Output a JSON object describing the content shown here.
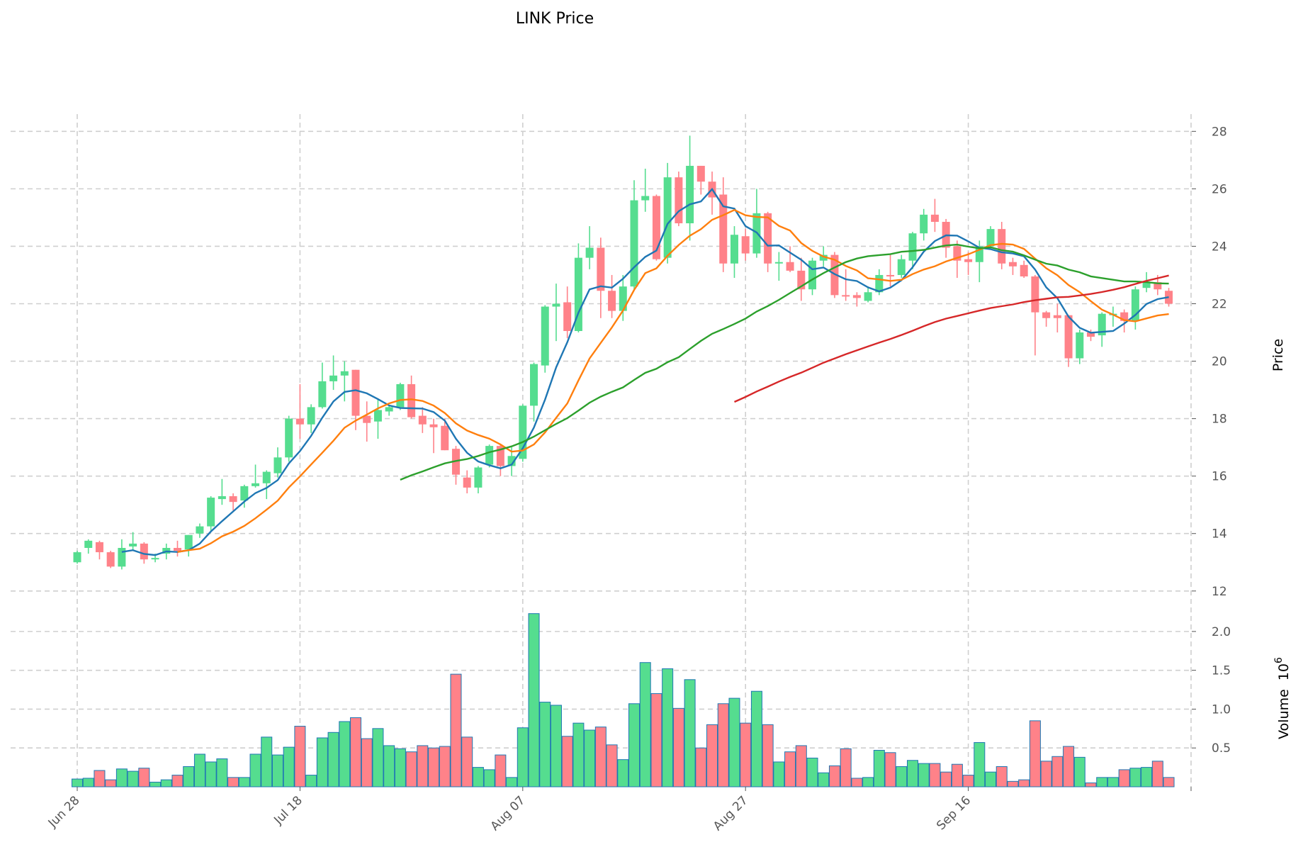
{
  "chart_data": {
    "type": "candlestick",
    "title": "LINK Price",
    "price_axis": {
      "label": "Price",
      "ylim": [
        11.6,
        28.6
      ],
      "ticks": [
        12,
        14,
        16,
        18,
        20,
        22,
        24,
        26,
        28
      ]
    },
    "volume_axis": {
      "label": "Volume",
      "multiplier_label": "10",
      "multiplier_exp": "6",
      "ylim": [
        0,
        2.3
      ],
      "ticks": [
        0.5,
        1.0,
        1.5,
        2.0
      ],
      "tick_labels": [
        "0.5",
        "1.0",
        "1.5",
        "2.0"
      ]
    },
    "x_ticks": [
      {
        "index": 0,
        "label": "Jun 28"
      },
      {
        "index": 20,
        "label": "Jul 18"
      },
      {
        "index": 40,
        "label": "Aug 07"
      },
      {
        "index": 60,
        "label": "Aug 27"
      },
      {
        "index": 80,
        "label": "Sep 16"
      },
      {
        "index": 100,
        "label": ""
      }
    ],
    "grid": true,
    "colors": {
      "up": "#55dd8f",
      "down": "#ff8289",
      "volume_edge": "#1f77b4",
      "ma": [
        "#1f77b4",
        "#ff7f0e",
        "#2ca02c",
        "#d62728"
      ]
    },
    "moving_average_periods": [
      5,
      10,
      30,
      60
    ],
    "ohlc_fields": [
      "open",
      "high",
      "low",
      "close"
    ],
    "ohlc": [
      [
        13.0,
        13.4,
        12.95,
        13.35
      ],
      [
        13.5,
        13.8,
        13.3,
        13.75
      ],
      [
        13.7,
        13.75,
        13.1,
        13.35
      ],
      [
        13.35,
        13.4,
        12.8,
        12.85
      ],
      [
        12.85,
        13.8,
        12.75,
        13.5
      ],
      [
        13.55,
        14.05,
        13.4,
        13.65
      ],
      [
        13.65,
        13.7,
        12.95,
        13.1
      ],
      [
        13.1,
        13.3,
        13.0,
        13.15
      ],
      [
        13.3,
        13.65,
        13.1,
        13.5
      ],
      [
        13.5,
        13.75,
        13.2,
        13.4
      ],
      [
        13.45,
        13.95,
        13.2,
        13.95
      ],
      [
        14.0,
        14.35,
        13.85,
        14.25
      ],
      [
        14.25,
        15.3,
        14.1,
        15.25
      ],
      [
        15.2,
        15.9,
        15.0,
        15.3
      ],
      [
        15.3,
        15.4,
        14.8,
        15.1
      ],
      [
        15.15,
        15.7,
        14.9,
        15.65
      ],
      [
        15.65,
        16.4,
        15.6,
        15.75
      ],
      [
        15.75,
        16.2,
        15.2,
        16.15
      ],
      [
        16.1,
        17.0,
        15.95,
        16.65
      ],
      [
        16.65,
        18.1,
        16.5,
        18.0
      ],
      [
        18.0,
        19.2,
        17.3,
        17.8
      ],
      [
        17.8,
        18.5,
        17.5,
        18.4
      ],
      [
        18.4,
        19.95,
        18.35,
        19.3
      ],
      [
        19.3,
        20.2,
        19.0,
        19.5
      ],
      [
        19.5,
        20.0,
        18.6,
        19.65
      ],
      [
        19.7,
        19.7,
        17.6,
        18.1
      ],
      [
        18.1,
        18.6,
        17.2,
        17.85
      ],
      [
        17.9,
        18.7,
        17.3,
        18.3
      ],
      [
        18.25,
        18.45,
        18.1,
        18.4
      ],
      [
        18.4,
        19.25,
        18.3,
        19.2
      ],
      [
        19.2,
        19.5,
        18.0,
        18.05
      ],
      [
        18.1,
        18.4,
        17.5,
        17.8
      ],
      [
        17.8,
        18.0,
        16.8,
        17.7
      ],
      [
        17.75,
        18.0,
        16.9,
        16.9
      ],
      [
        16.95,
        17.05,
        15.7,
        16.05
      ],
      [
        15.95,
        16.2,
        15.4,
        15.6
      ],
      [
        15.6,
        16.35,
        15.4,
        16.3
      ],
      [
        16.4,
        17.1,
        16.3,
        17.05
      ],
      [
        17.05,
        17.1,
        16.0,
        16.35
      ],
      [
        16.35,
        17.0,
        16.0,
        16.7
      ],
      [
        16.6,
        18.5,
        16.5,
        18.45
      ],
      [
        18.45,
        19.95,
        17.9,
        19.9
      ],
      [
        19.85,
        21.95,
        19.6,
        21.9
      ],
      [
        21.9,
        22.7,
        20.7,
        22.0
      ],
      [
        22.05,
        22.6,
        20.8,
        21.05
      ],
      [
        21.05,
        24.1,
        21.0,
        23.6
      ],
      [
        23.6,
        24.7,
        23.2,
        23.95
      ],
      [
        23.95,
        24.3,
        21.5,
        22.45
      ],
      [
        22.45,
        23.0,
        21.5,
        21.75
      ],
      [
        21.75,
        23.0,
        21.4,
        22.6
      ],
      [
        22.6,
        26.3,
        22.5,
        25.6
      ],
      [
        25.6,
        26.7,
        25.2,
        25.75
      ],
      [
        25.75,
        25.8,
        23.5,
        23.55
      ],
      [
        23.6,
        26.9,
        23.4,
        26.4
      ],
      [
        26.4,
        26.6,
        24.7,
        24.8
      ],
      [
        24.8,
        27.85,
        24.2,
        26.8
      ],
      [
        26.8,
        26.8,
        25.8,
        26.25
      ],
      [
        26.25,
        26.6,
        25.1,
        25.7
      ],
      [
        25.8,
        26.4,
        23.1,
        23.4
      ],
      [
        23.4,
        24.7,
        22.9,
        24.4
      ],
      [
        24.35,
        24.6,
        23.5,
        23.75
      ],
      [
        23.75,
        26.0,
        23.6,
        25.15
      ],
      [
        25.15,
        25.2,
        23.1,
        23.4
      ],
      [
        23.4,
        23.8,
        22.8,
        23.45
      ],
      [
        23.45,
        24.0,
        23.1,
        23.15
      ],
      [
        23.15,
        23.6,
        22.1,
        22.5
      ],
      [
        22.5,
        23.6,
        22.3,
        23.5
      ],
      [
        23.5,
        24.0,
        23.3,
        23.7
      ],
      [
        23.7,
        23.8,
        22.2,
        22.3
      ],
      [
        22.3,
        23.2,
        22.1,
        22.25
      ],
      [
        22.3,
        22.4,
        21.9,
        22.2
      ],
      [
        22.1,
        22.6,
        22.05,
        22.4
      ],
      [
        22.4,
        23.2,
        22.3,
        23.0
      ],
      [
        23.0,
        23.7,
        22.6,
        22.95
      ],
      [
        23.0,
        23.7,
        22.9,
        23.55
      ],
      [
        23.5,
        24.5,
        23.2,
        24.45
      ],
      [
        24.45,
        25.3,
        24.2,
        25.1
      ],
      [
        25.1,
        25.65,
        24.5,
        24.85
      ],
      [
        24.85,
        24.95,
        23.6,
        23.95
      ],
      [
        24.0,
        24.2,
        22.9,
        23.5
      ],
      [
        23.55,
        23.8,
        23.0,
        23.45
      ],
      [
        23.45,
        24.2,
        22.75,
        24.0
      ],
      [
        24.0,
        24.7,
        23.9,
        24.6
      ],
      [
        24.6,
        24.85,
        23.2,
        23.4
      ],
      [
        23.45,
        23.6,
        23.0,
        23.3
      ],
      [
        23.35,
        23.5,
        22.9,
        22.95
      ],
      [
        22.95,
        23.0,
        20.2,
        21.7
      ],
      [
        21.7,
        21.75,
        21.2,
        21.5
      ],
      [
        21.6,
        22.0,
        21.0,
        21.5
      ],
      [
        21.6,
        21.6,
        19.8,
        20.1
      ],
      [
        20.1,
        21.1,
        19.9,
        21.0
      ],
      [
        21.0,
        21.1,
        20.7,
        20.85
      ],
      [
        20.9,
        21.7,
        20.5,
        21.65
      ],
      [
        21.6,
        21.9,
        21.2,
        21.65
      ],
      [
        21.7,
        21.8,
        21.0,
        21.4
      ],
      [
        21.4,
        22.6,
        21.1,
        22.5
      ],
      [
        22.55,
        23.1,
        22.4,
        22.75
      ],
      [
        22.75,
        23.0,
        22.3,
        22.5
      ],
      [
        22.45,
        22.55,
        21.9,
        22.0
      ]
    ],
    "volume_millions": [
      0.1,
      0.11,
      0.21,
      0.09,
      0.23,
      0.2,
      0.24,
      0.06,
      0.09,
      0.15,
      0.26,
      0.42,
      0.32,
      0.36,
      0.12,
      0.12,
      0.42,
      0.64,
      0.41,
      0.51,
      0.78,
      0.15,
      0.63,
      0.7,
      0.84,
      0.89,
      0.62,
      0.75,
      0.53,
      0.49,
      0.45,
      0.53,
      0.5,
      0.52,
      1.45,
      0.64,
      0.25,
      0.22,
      0.41,
      0.12,
      0.76,
      2.23,
      1.09,
      1.05,
      0.65,
      0.82,
      0.73,
      0.77,
      0.54,
      0.35,
      1.07,
      1.6,
      1.2,
      1.52,
      1.01,
      1.38,
      0.5,
      0.8,
      1.07,
      1.14,
      0.82,
      1.23,
      0.8,
      0.32,
      0.45,
      0.53,
      0.37,
      0.18,
      0.27,
      0.49,
      0.11,
      0.12,
      0.47,
      0.44,
      0.26,
      0.34,
      0.3,
      0.3,
      0.19,
      0.29,
      0.15,
      0.57,
      0.19,
      0.26,
      0.07,
      0.09,
      0.85,
      0.33,
      0.39,
      0.52,
      0.38,
      0.05,
      0.12,
      0.12,
      0.22,
      0.24,
      0.25,
      0.33,
      0.12
    ]
  }
}
